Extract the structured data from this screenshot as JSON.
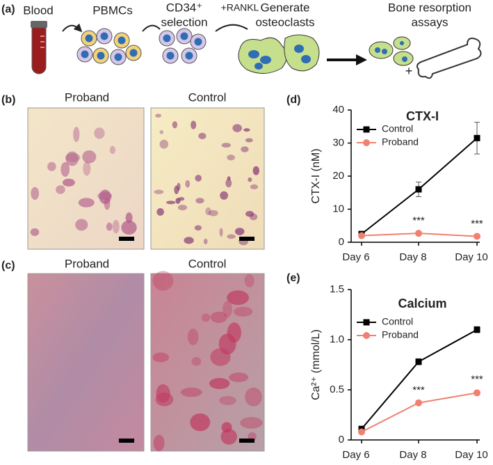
{
  "figure": {
    "panel_labels": [
      "(a)",
      "(b)",
      "(c)",
      "(d)",
      "(e)"
    ],
    "schematic": {
      "blood": "Blood",
      "pbmcs": "PBMCs",
      "cd34_line1": "CD34⁺",
      "cd34_line2": "selection",
      "rankl": "+RANKL",
      "generate_line1": "Generate",
      "generate_line2": "osteoclasts",
      "bone_line1": "Bone resorption",
      "bone_line2": "assays",
      "plus": "+"
    },
    "micrographs_b": [
      "Proband",
      "Control"
    ],
    "micrographs_c": [
      "Proband",
      "Control"
    ]
  },
  "chart_data": [
    {
      "type": "line",
      "title": "CTX-I",
      "ylabel": "CTX-I (nM)",
      "categories": [
        "Day 6",
        "Day 8",
        "Day 10"
      ],
      "series": [
        {
          "name": "Control",
          "color": "#000000",
          "marker": "square",
          "values": [
            2.5,
            16,
            31.5
          ],
          "errors": [
            0.5,
            2.2,
            4.8
          ]
        },
        {
          "name": "Proband",
          "color": "#f08070",
          "marker": "circle",
          "values": [
            2,
            2.7,
            1.8
          ],
          "errors": [
            0.3,
            0.3,
            0.3
          ]
        }
      ],
      "ylim": [
        0,
        40
      ],
      "yticks": [
        0,
        10,
        20,
        30,
        40
      ],
      "legend": "upper left",
      "annotations": [
        {
          "text": "***",
          "x": "Day 8"
        },
        {
          "text": "***",
          "x": "Day 10"
        }
      ]
    },
    {
      "type": "line",
      "title": "Calcium",
      "ylabel": "Ca²⁺ (mmol/L)",
      "categories": [
        "Day 6",
        "Day 8",
        "Day 10"
      ],
      "series": [
        {
          "name": "Control",
          "color": "#000000",
          "marker": "square",
          "values": [
            0.11,
            0.78,
            1.1
          ],
          "errors": [
            0.02,
            0.03,
            0.03
          ]
        },
        {
          "name": "Proband",
          "color": "#f08070",
          "marker": "circle",
          "values": [
            0.08,
            0.37,
            0.47
          ],
          "errors": [
            0.01,
            0.01,
            0.02
          ]
        }
      ],
      "ylim": [
        0,
        1.5
      ],
      "yticks": [
        0,
        0.5,
        {
          "value": 1,
          "label": "1.0"
        },
        1.5
      ],
      "legend": "upper left",
      "annotations": [
        {
          "text": "***",
          "x": "Day 8"
        },
        {
          "text": "***",
          "x": "Day 10"
        }
      ]
    }
  ]
}
